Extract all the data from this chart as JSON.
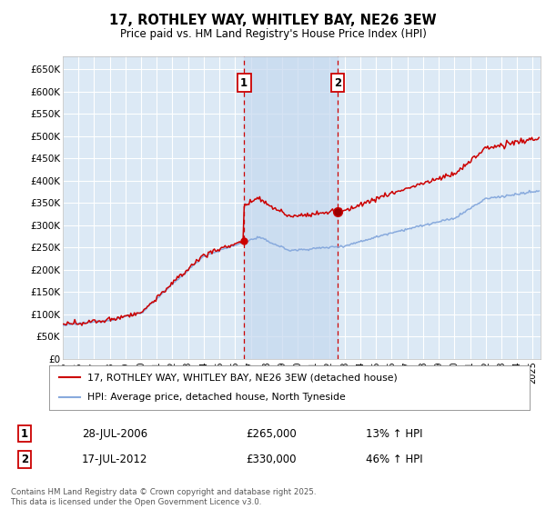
{
  "title": "17, ROTHLEY WAY, WHITLEY BAY, NE26 3EW",
  "subtitle": "Price paid vs. HM Land Registry's House Price Index (HPI)",
  "ylabel_ticks": [
    "£0",
    "£50K",
    "£100K",
    "£150K",
    "£200K",
    "£250K",
    "£300K",
    "£350K",
    "£400K",
    "£450K",
    "£500K",
    "£550K",
    "£600K",
    "£650K"
  ],
  "ylim": [
    0,
    680000
  ],
  "xlim_start": 1995.0,
  "xlim_end": 2025.5,
  "sale1_date": 2006.57,
  "sale1_price": 265000,
  "sale1_label": "1",
  "sale1_hpi_pct": "13% ↑ HPI",
  "sale1_date_str": "28-JUL-2006",
  "sale2_date": 2012.54,
  "sale2_price": 330000,
  "sale2_label": "2",
  "sale2_hpi_pct": "46% ↑ HPI",
  "sale2_date_str": "17-JUL-2012",
  "legend_line1": "17, ROTHLEY WAY, WHITLEY BAY, NE26 3EW (detached house)",
  "legend_line2": "HPI: Average price, detached house, North Tyneside",
  "footnote": "Contains HM Land Registry data © Crown copyright and database right 2025.\nThis data is licensed under the Open Government Licence v3.0.",
  "line_color_red": "#cc0000",
  "line_color_blue": "#88aadd",
  "background_color": "#dce9f5",
  "shade_color": "#c5d8ef",
  "grid_color": "#ffffff",
  "box_color": "#cc0000"
}
